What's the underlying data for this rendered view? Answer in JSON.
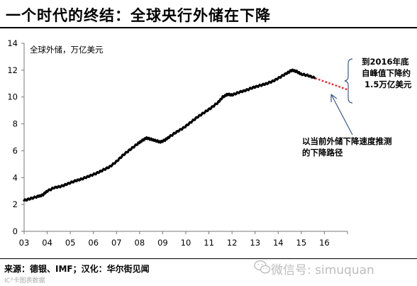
{
  "header": {
    "title": "一个时代的终结：全球央行外储在下降"
  },
  "footer": {
    "source": "来源：德银、IMF；汉化：华尔街见闻",
    "small_text": "IC²卡图表数据",
    "watermark": "微信号: simuquan"
  },
  "colors": {
    "actual_line": "#000000",
    "projection_line": "#e8262d",
    "arrow": "#3a5a8c"
  },
  "chart_data": {
    "type": "line",
    "title": "",
    "series_label": "全球外储，万亿美元",
    "xlabel": "",
    "ylabel": "",
    "x_ticks": [
      "03",
      "04",
      "05",
      "06",
      "07",
      "08",
      "09",
      "10",
      "11",
      "12",
      "13",
      "14",
      "15",
      "16"
    ],
    "y_ticks": [
      0,
      2,
      4,
      6,
      8,
      10,
      12,
      14
    ],
    "ylim": [
      0,
      14
    ],
    "xlim": [
      2003.0,
      2017.0
    ],
    "grid": false,
    "series": [
      {
        "style": "solid",
        "x": [
          2003.0,
          2003.3,
          2003.6,
          2003.8,
          2004.0,
          2004.3,
          2004.6,
          2004.9,
          2005.2,
          2005.5,
          2005.8,
          2006.1,
          2006.4,
          2006.7,
          2007.0,
          2007.3,
          2007.6,
          2007.9,
          2008.1,
          2008.3,
          2008.5,
          2008.7,
          2008.9,
          2009.1,
          2009.3,
          2009.6,
          2009.9,
          2010.2,
          2010.5,
          2010.8,
          2011.1,
          2011.4,
          2011.6,
          2011.8,
          2012.0,
          2012.3,
          2012.6,
          2012.9,
          2013.2,
          2013.5,
          2013.8,
          2014.1,
          2014.4,
          2014.6,
          2014.8,
          2015.0,
          2015.3,
          2015.6
        ],
        "values": [
          2.3,
          2.45,
          2.6,
          2.7,
          3.0,
          3.25,
          3.35,
          3.55,
          3.75,
          3.9,
          4.1,
          4.3,
          4.55,
          4.8,
          5.2,
          5.7,
          6.1,
          6.5,
          6.75,
          6.95,
          6.85,
          6.75,
          6.65,
          6.8,
          7.05,
          7.4,
          7.7,
          8.1,
          8.5,
          8.85,
          9.2,
          9.6,
          10.0,
          10.2,
          10.15,
          10.35,
          10.5,
          10.7,
          10.85,
          11.0,
          11.2,
          11.5,
          11.8,
          12.0,
          11.9,
          11.7,
          11.6,
          11.4
        ]
      },
      {
        "style": "dotted",
        "x": [
          2015.6,
          2017.0
        ],
        "values": [
          11.4,
          10.55
        ]
      }
    ],
    "annotations": [
      {
        "id": "end2016",
        "text": [
          "到2016年底",
          "自峰值下降约",
          "1.5万亿美元"
        ]
      },
      {
        "id": "projection",
        "text": [
          "以当前外储下降速度推测",
          "的下降路径"
        ]
      }
    ]
  }
}
